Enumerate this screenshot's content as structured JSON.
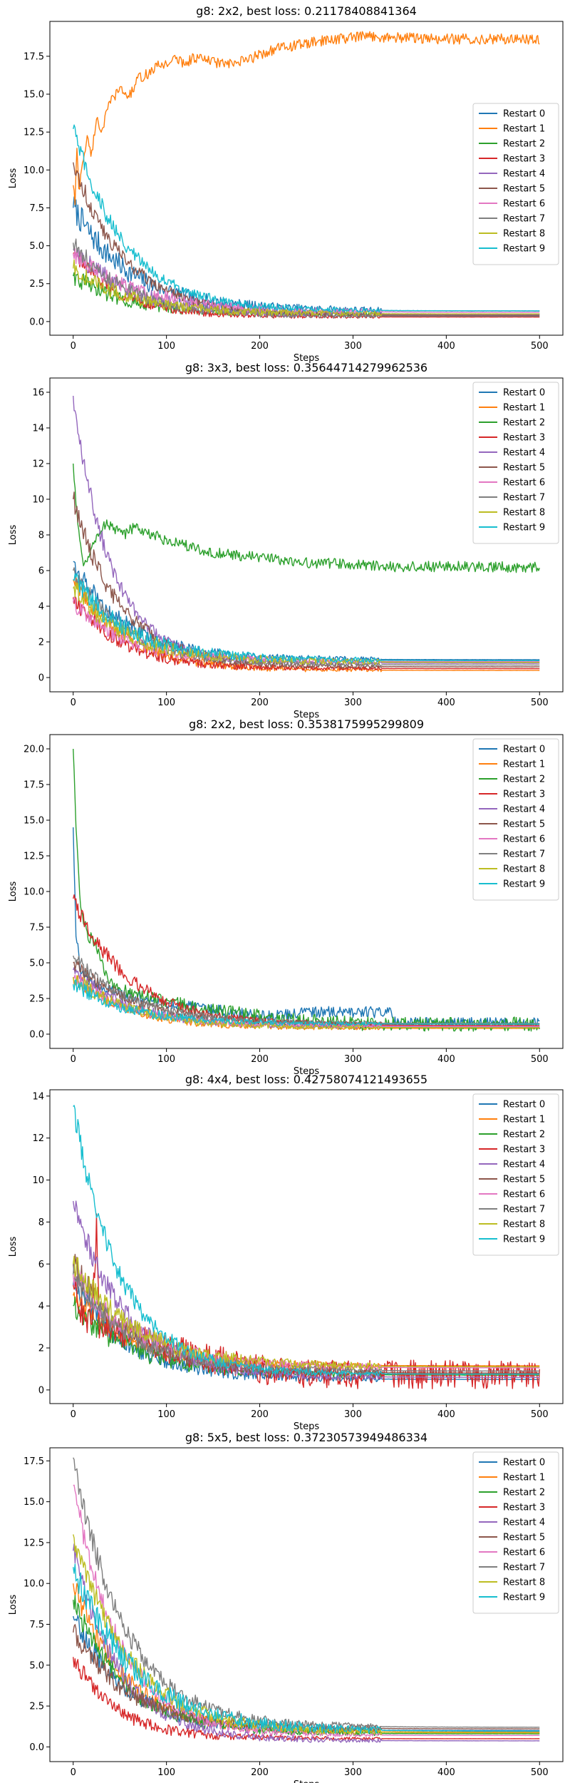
{
  "colors": [
    "#1f77b4",
    "#ff7f0e",
    "#2ca02c",
    "#d62728",
    "#9467bd",
    "#8c564b",
    "#e377c2",
    "#7f7f7f",
    "#bcbd22",
    "#17becf"
  ],
  "series_names": [
    "Restart 0",
    "Restart 1",
    "Restart 2",
    "Restart 3",
    "Restart 4",
    "Restart 5",
    "Restart 6",
    "Restart 7",
    "Restart 8",
    "Restart 9"
  ],
  "chart_data": [
    {
      "type": "line",
      "title": "g8: 2x2, best loss: 0.21178408841364",
      "xlabel": "Steps",
      "ylabel": "Loss",
      "xlim": [
        -25,
        525
      ],
      "ylim": [
        -0.9,
        19.8
      ],
      "xticks": [
        0,
        100,
        200,
        300,
        400,
        500
      ],
      "yticks": [
        0.0,
        2.5,
        5.0,
        7.5,
        10.0,
        12.5,
        15.0,
        17.5
      ],
      "legend": "center-right",
      "series": [
        {
          "name": "Restart 0",
          "start": 7.5,
          "plateau": 0.7,
          "tau": 60,
          "noise": 0.9
        },
        {
          "name": "Restart 1",
          "points": [
            [
              0,
              9.0
            ],
            [
              2,
              7.8
            ],
            [
              4,
              11.5
            ],
            [
              6,
              8.5
            ],
            [
              10,
              10.5
            ],
            [
              15,
              12.0
            ],
            [
              20,
              11.0
            ],
            [
              25,
              13.5
            ],
            [
              30,
              12.5
            ],
            [
              40,
              14.5
            ],
            [
              50,
              15.3
            ],
            [
              60,
              14.8
            ],
            [
              70,
              16.0
            ],
            [
              80,
              16.3
            ],
            [
              90,
              16.8
            ],
            [
              100,
              17.0
            ],
            [
              110,
              17.3
            ],
            [
              120,
              17.0
            ],
            [
              130,
              17.4
            ],
            [
              150,
              17.1
            ],
            [
              170,
              16.9
            ],
            [
              190,
              17.3
            ],
            [
              200,
              17.6
            ],
            [
              210,
              17.8
            ],
            [
              220,
              18.0
            ],
            [
              240,
              18.2
            ],
            [
              260,
              18.4
            ],
            [
              280,
              18.6
            ],
            [
              300,
              18.7
            ],
            [
              320,
              18.8
            ],
            [
              340,
              18.7
            ],
            [
              360,
              18.7
            ],
            [
              380,
              18.6
            ],
            [
              400,
              18.6
            ],
            [
              450,
              18.6
            ],
            [
              500,
              18.6
            ]
          ],
          "noise": 0.35
        },
        {
          "name": "Restart 2",
          "start": 3.0,
          "plateau": 0.5,
          "tau": 55,
          "noise": 0.6
        },
        {
          "name": "Restart 3",
          "start": 4.5,
          "plateau": 0.3,
          "tau": 50,
          "noise": 0.5
        },
        {
          "name": "Restart 4",
          "start": 4.8,
          "plateau": 0.45,
          "tau": 60,
          "noise": 0.7
        },
        {
          "name": "Restart 5",
          "start": 10.5,
          "plateau": 0.4,
          "tau": 55,
          "noise": 0.6
        },
        {
          "name": "Restart 6",
          "start": 4.5,
          "plateau": 0.6,
          "tau": 70,
          "noise": 0.6
        },
        {
          "name": "Restart 7",
          "start": 5.2,
          "plateau": 0.35,
          "tau": 55,
          "noise": 0.6
        },
        {
          "name": "Restart 8",
          "start": 3.5,
          "plateau": 0.5,
          "tau": 60,
          "noise": 0.6
        },
        {
          "name": "Restart 9",
          "start": 12.7,
          "plateau": 0.7,
          "tau": 55,
          "noise": 0.6
        }
      ]
    },
    {
      "type": "line",
      "title": "g8: 3x3, best loss: 0.35644714279962536",
      "xlabel": "Steps",
      "ylabel": "Loss",
      "xlim": [
        -25,
        525
      ],
      "ylim": [
        -0.8,
        16.8
      ],
      "xticks": [
        0,
        100,
        200,
        300,
        400,
        500
      ],
      "yticks": [
        0,
        2,
        4,
        6,
        8,
        10,
        12,
        14,
        16
      ],
      "legend": "top-right",
      "series": [
        {
          "name": "Restart 0",
          "start": 6.5,
          "plateau": 1.0,
          "tau": 55,
          "noise": 0.6
        },
        {
          "name": "Restart 1",
          "start": 5.5,
          "plateau": 0.4,
          "tau": 55,
          "noise": 0.5
        },
        {
          "name": "Restart 2",
          "points": [
            [
              0,
              12.0
            ],
            [
              3,
              9.5
            ],
            [
              8,
              7.5
            ],
            [
              12,
              6.2
            ],
            [
              18,
              7.0
            ],
            [
              25,
              7.8
            ],
            [
              35,
              8.6
            ],
            [
              45,
              8.3
            ],
            [
              55,
              8.0
            ],
            [
              65,
              8.4
            ],
            [
              75,
              8.1
            ],
            [
              90,
              7.9
            ],
            [
              100,
              7.6
            ],
            [
              120,
              7.4
            ],
            [
              140,
              7.1
            ],
            [
              160,
              6.9
            ],
            [
              180,
              6.8
            ],
            [
              200,
              6.7
            ],
            [
              230,
              6.5
            ],
            [
              260,
              6.4
            ],
            [
              300,
              6.3
            ],
            [
              330,
              6.2
            ],
            [
              400,
              6.2
            ],
            [
              500,
              6.15
            ]
          ],
          "noise": 0.3
        },
        {
          "name": "Restart 3",
          "start": 4.5,
          "plateau": 0.5,
          "tau": 50,
          "noise": 0.5
        },
        {
          "name": "Restart 4",
          "start": 15.8,
          "plateau": 0.8,
          "tau": 40,
          "noise": 0.6
        },
        {
          "name": "Restart 5",
          "start": 10.0,
          "plateau": 0.6,
          "tau": 50,
          "noise": 0.6
        },
        {
          "name": "Restart 6",
          "start": 4.2,
          "plateau": 0.9,
          "tau": 55,
          "noise": 0.5
        },
        {
          "name": "Restart 7",
          "start": 6.0,
          "plateau": 0.7,
          "tau": 55,
          "noise": 0.5
        },
        {
          "name": "Restart 8",
          "start": 5.0,
          "plateau": 0.85,
          "tau": 60,
          "noise": 0.6
        },
        {
          "name": "Restart 9",
          "start": 5.5,
          "plateau": 0.95,
          "tau": 60,
          "noise": 0.6
        }
      ]
    },
    {
      "type": "line",
      "title": "g8: 2x2, best loss: 0.3538175995299809",
      "xlabel": "Steps",
      "ylabel": "Loss",
      "xlim": [
        -25,
        525
      ],
      "ylim": [
        -1.0,
        21.0
      ],
      "xticks": [
        0,
        100,
        200,
        300,
        400,
        500
      ],
      "yticks": [
        0.0,
        2.5,
        5.0,
        7.5,
        10.0,
        12.5,
        15.0,
        17.5,
        20.0
      ],
      "legend": "top-right",
      "series": [
        {
          "name": "Restart 0",
          "points": [
            [
              0,
              14.5
            ],
            [
              3,
              7.0
            ],
            [
              8,
              4.5
            ],
            [
              20,
              3.5
            ],
            [
              50,
              2.8
            ],
            [
              100,
              2.2
            ],
            [
              150,
              1.7
            ],
            [
              200,
              1.2
            ],
            [
              230,
              1.3
            ],
            [
              250,
              1.5
            ],
            [
              280,
              1.5
            ],
            [
              300,
              1.5
            ],
            [
              320,
              1.5
            ],
            [
              340,
              1.5
            ],
            [
              345,
              0.8
            ],
            [
              400,
              0.75
            ],
            [
              500,
              0.75
            ]
          ],
          "noise": 0.4
        },
        {
          "name": "Restart 1",
          "start": 4.0,
          "plateau": 0.4,
          "tau": 60,
          "noise": 0.5
        },
        {
          "name": "Restart 2",
          "points": [
            [
              0,
              20.0
            ],
            [
              3,
              14.0
            ],
            [
              8,
              9.0
            ],
            [
              15,
              7.0
            ],
            [
              25,
              6.0
            ],
            [
              35,
              4.0
            ],
            [
              50,
              3.0
            ],
            [
              100,
              2.2
            ],
            [
              150,
              1.6
            ],
            [
              200,
              1.2
            ],
            [
              250,
              0.9
            ],
            [
              300,
              0.7
            ],
            [
              400,
              0.65
            ],
            [
              500,
              0.65
            ]
          ],
          "noise": 0.5
        },
        {
          "name": "Restart 3",
          "start": 9.5,
          "plateau": 0.6,
          "tau": 60,
          "noise": 0.6
        },
        {
          "name": "Restart 4",
          "start": 4.5,
          "plateau": 0.5,
          "tau": 60,
          "noise": 0.5
        },
        {
          "name": "Restart 5",
          "start": 5.0,
          "plateau": 0.7,
          "tau": 65,
          "noise": 0.5
        },
        {
          "name": "Restart 6",
          "start": 4.0,
          "plateau": 0.55,
          "tau": 60,
          "noise": 0.5
        },
        {
          "name": "Restart 7",
          "start": 5.5,
          "plateau": 0.75,
          "tau": 60,
          "noise": 0.5
        },
        {
          "name": "Restart 8",
          "start": 4.0,
          "plateau": 0.45,
          "tau": 60,
          "noise": 0.5
        },
        {
          "name": "Restart 9",
          "start": 3.5,
          "plateau": 0.7,
          "tau": 60,
          "noise": 0.5
        }
      ]
    },
    {
      "type": "line",
      "title": "g8: 4x4, best loss: 0.42758074121493655",
      "xlabel": "Steps",
      "ylabel": "Loss",
      "xlim": [
        -25,
        525
      ],
      "ylim": [
        -0.65,
        14.3
      ],
      "xticks": [
        0,
        100,
        200,
        300,
        400,
        500
      ],
      "yticks": [
        0,
        2,
        4,
        6,
        8,
        10,
        12,
        14
      ],
      "legend": "top-right",
      "series": [
        {
          "name": "Restart 0",
          "start": 5.0,
          "plateau": 0.5,
          "tau": 60,
          "noise": 0.6
        },
        {
          "name": "Restart 1",
          "start": 4.5,
          "plateau": 1.15,
          "tau": 60,
          "noise": 0.5
        },
        {
          "name": "Restart 2",
          "start": 4.0,
          "plateau": 0.7,
          "tau": 65,
          "noise": 0.6
        },
        {
          "name": "Restart 3",
          "points": [
            [
              0,
              5.0
            ],
            [
              10,
              3.5
            ],
            [
              20,
              3.0
            ],
            [
              25,
              7.7
            ],
            [
              28,
              3.0
            ],
            [
              50,
              2.6
            ],
            [
              100,
              1.9
            ],
            [
              150,
              1.4
            ],
            [
              200,
              0.9
            ],
            [
              250,
              0.7
            ],
            [
              300,
              0.65
            ],
            [
              500,
              0.65
            ]
          ],
          "noise": 0.7
        },
        {
          "name": "Restart 4",
          "start": 9.0,
          "plateau": 0.6,
          "tau": 55,
          "noise": 0.6
        },
        {
          "name": "Restart 5",
          "start": 6.0,
          "plateau": 0.8,
          "tau": 60,
          "noise": 0.6
        },
        {
          "name": "Restart 6",
          "start": 5.5,
          "plateau": 1.05,
          "tau": 65,
          "noise": 0.6
        },
        {
          "name": "Restart 7",
          "start": 5.5,
          "plateau": 0.9,
          "tau": 60,
          "noise": 0.6
        },
        {
          "name": "Restart 8",
          "start": 6.0,
          "plateau": 1.1,
          "tau": 65,
          "noise": 0.6
        },
        {
          "name": "Restart 9",
          "start": 13.5,
          "plateau": 0.75,
          "tau": 50,
          "noise": 0.6
        }
      ]
    },
    {
      "type": "line",
      "title": "g8: 5x5, best loss: 0.37230573949486334",
      "xlabel": "Steps",
      "ylabel": "Loss",
      "xlim": [
        -25,
        525
      ],
      "ylim": [
        -0.9,
        18.3
      ],
      "xticks": [
        0,
        100,
        200,
        300,
        400,
        500
      ],
      "yticks": [
        0.0,
        2.5,
        5.0,
        7.5,
        10.0,
        12.5,
        15.0,
        17.5
      ],
      "legend": "top-right",
      "series": [
        {
          "name": "Restart 0",
          "start": 8.0,
          "plateau": 1.0,
          "tau": 55,
          "noise": 0.7
        },
        {
          "name": "Restart 1",
          "start": 10.0,
          "plateau": 0.9,
          "tau": 55,
          "noise": 0.7
        },
        {
          "name": "Restart 2",
          "start": 9.0,
          "plateau": 0.8,
          "tau": 55,
          "noise": 0.7
        },
        {
          "name": "Restart 3",
          "start": 5.5,
          "plateau": 0.5,
          "tau": 45,
          "noise": 0.6
        },
        {
          "name": "Restart 4",
          "start": 12.0,
          "plateau": 0.37,
          "tau": 50,
          "noise": 0.7
        },
        {
          "name": "Restart 5",
          "start": 7.0,
          "plateau": 1.1,
          "tau": 60,
          "noise": 0.7
        },
        {
          "name": "Restart 6",
          "start": 16.0,
          "plateau": 0.7,
          "tau": 50,
          "noise": 0.7
        },
        {
          "name": "Restart 7",
          "start": 17.7,
          "plateau": 1.2,
          "tau": 55,
          "noise": 0.8
        },
        {
          "name": "Restart 8",
          "start": 13.0,
          "plateau": 0.85,
          "tau": 60,
          "noise": 0.8
        },
        {
          "name": "Restart 9",
          "start": 11.0,
          "plateau": 0.95,
          "tau": 65,
          "noise": 0.9
        }
      ]
    }
  ]
}
